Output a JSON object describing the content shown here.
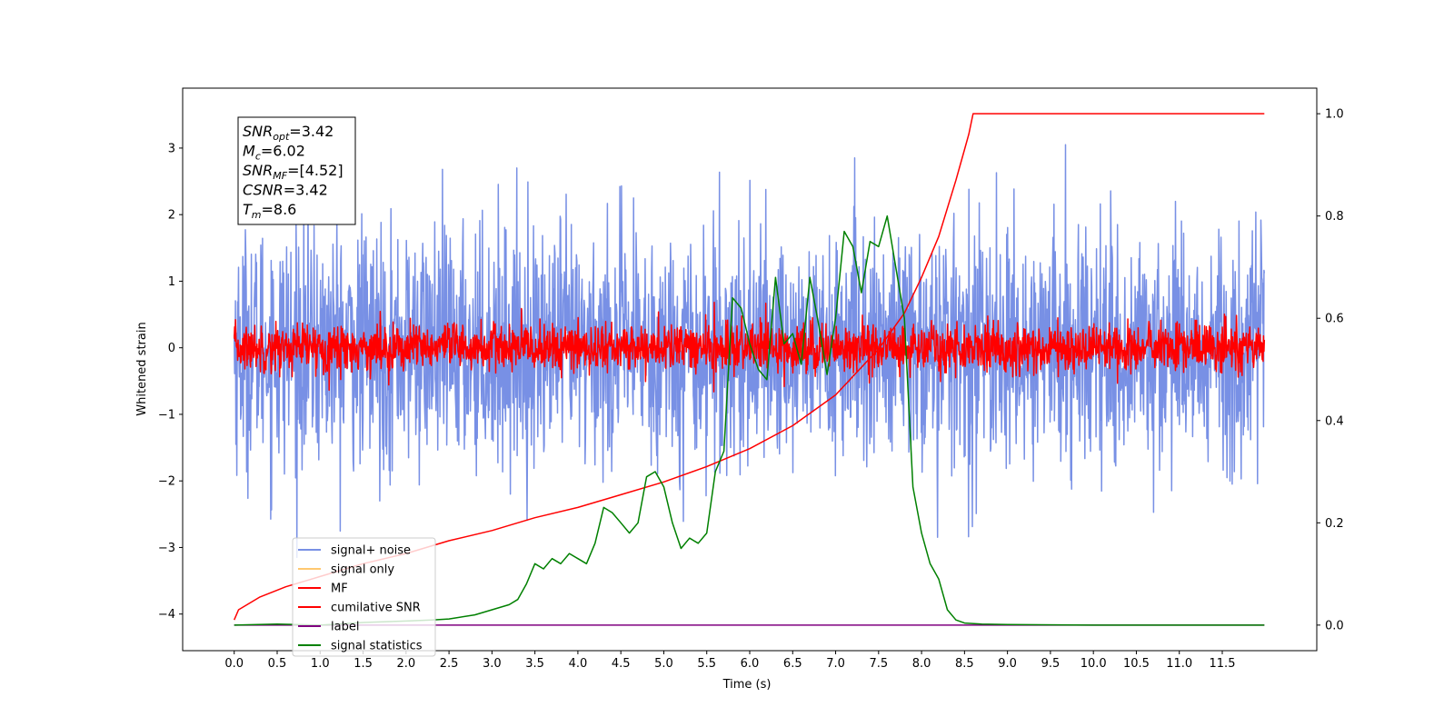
{
  "chart_data": {
    "type": "line",
    "xlabel": "Time (s)",
    "ylabel": "Whitened strain",
    "xlim": [
      -0.6,
      12.6
    ],
    "ylim": [
      -4.55,
      3.9
    ],
    "ylim_right": [
      -0.05,
      1.05
    ],
    "x_ticks": [
      "0.0",
      "0.5",
      "1.0",
      "1.5",
      "2.0",
      "2.5",
      "3.0",
      "3.5",
      "4.0",
      "4.5",
      "5.0",
      "5.5",
      "6.0",
      "6.5",
      "7.0",
      "7.5",
      "8.0",
      "8.5",
      "9.0",
      "9.5",
      "10.0",
      "10.5",
      "11.0",
      "11.5"
    ],
    "x_tick_values": [
      0,
      0.5,
      1,
      1.5,
      2,
      2.5,
      3,
      3.5,
      4,
      4.5,
      5,
      5.5,
      6,
      6.5,
      7,
      7.5,
      8,
      8.5,
      9,
      9.5,
      10,
      10.5,
      11,
      11.5
    ],
    "y_ticks": [
      "−4",
      "−3",
      "−2",
      "−1",
      "0",
      "1",
      "2",
      "3"
    ],
    "y_tick_values": [
      -4,
      -3,
      -2,
      -1,
      0,
      1,
      2,
      3
    ],
    "y_right_ticks": [
      "0.0",
      "0.2",
      "0.4",
      "0.6",
      "0.8",
      "1.0"
    ],
    "y_right_tick_values": [
      0,
      0.2,
      0.4,
      0.6,
      0.8,
      1.0
    ],
    "annotation": [
      {
        "main": "SNR",
        "sub": "opt",
        "rest": "=3.42"
      },
      {
        "main": "M",
        "sub": "c",
        "rest": "=6.02"
      },
      {
        "main": "SNR",
        "sub": "MF",
        "rest": "=[4.52]"
      },
      {
        "main": "CSNR",
        "sub": "",
        "rest": "=3.42"
      },
      {
        "main": "T",
        "sub": "m",
        "rest": "=8.6"
      }
    ],
    "legend": [
      {
        "label": "signal+ noise",
        "color": "#7890e5"
      },
      {
        "label": "signal only",
        "color": "#ffc870"
      },
      {
        "label": "MF",
        "color": "#ff0000"
      },
      {
        "label": "cumilative SNR",
        "color": "#ff0000"
      },
      {
        "label": "label",
        "color": "#800080"
      },
      {
        "label": "signal statistics",
        "color": "#008000"
      }
    ],
    "legend_position": "lower-left",
    "series": [
      {
        "name": "signal+ noise",
        "axis": "left",
        "color": "#7890e5",
        "noise_amplitude": 1.0,
        "x_range": [
          0,
          11.99
        ]
      },
      {
        "name": "MF",
        "axis": "left",
        "color": "#ff0000",
        "noise_amplitude": 0.2,
        "x_range": [
          0,
          11.99
        ]
      },
      {
        "name": "cumilative SNR",
        "axis": "right",
        "color": "#ff0000",
        "x": [
          0,
          0.05,
          0.3,
          0.6,
          1.0,
          1.5,
          2.0,
          2.5,
          3.0,
          3.5,
          4.0,
          4.5,
          5.0,
          5.5,
          6.0,
          6.5,
          7.0,
          7.5,
          7.8,
          8.0,
          8.2,
          8.4,
          8.5,
          8.55,
          8.6,
          9.0,
          10.0,
          11.0,
          11.99
        ],
        "y": [
          0.01,
          0.03,
          0.055,
          0.075,
          0.095,
          0.12,
          0.14,
          0.165,
          0.185,
          0.21,
          0.23,
          0.255,
          0.28,
          0.31,
          0.345,
          0.39,
          0.45,
          0.54,
          0.61,
          0.68,
          0.76,
          0.87,
          0.93,
          0.96,
          1.0,
          1.0,
          1.0,
          1.0,
          1.0
        ]
      },
      {
        "name": "label",
        "axis": "right",
        "color": "#800080",
        "x": [
          0,
          11.99
        ],
        "y": [
          0,
          0
        ]
      },
      {
        "name": "signal statistics",
        "axis": "right",
        "color": "#008000",
        "x": [
          0,
          0.5,
          1.0,
          1.5,
          2.0,
          2.3,
          2.5,
          2.8,
          3.0,
          3.2,
          3.3,
          3.4,
          3.5,
          3.6,
          3.7,
          3.8,
          3.9,
          4.0,
          4.1,
          4.2,
          4.3,
          4.4,
          4.5,
          4.6,
          4.7,
          4.8,
          4.9,
          5.0,
          5.1,
          5.2,
          5.3,
          5.4,
          5.5,
          5.6,
          5.7,
          5.8,
          5.9,
          6.0,
          6.1,
          6.2,
          6.3,
          6.4,
          6.5,
          6.6,
          6.7,
          6.8,
          6.9,
          7.0,
          7.1,
          7.2,
          7.3,
          7.4,
          7.5,
          7.6,
          7.7,
          7.8,
          7.9,
          8.0,
          8.1,
          8.2,
          8.3,
          8.4,
          8.5,
          8.7,
          9.0,
          10.0,
          11.0,
          11.99
        ],
        "y": [
          0,
          0.002,
          0,
          0.005,
          0.008,
          0.01,
          0.012,
          0.02,
          0.03,
          0.04,
          0.05,
          0.08,
          0.12,
          0.11,
          0.13,
          0.12,
          0.14,
          0.13,
          0.12,
          0.16,
          0.23,
          0.22,
          0.2,
          0.18,
          0.2,
          0.29,
          0.3,
          0.27,
          0.2,
          0.15,
          0.17,
          0.16,
          0.18,
          0.3,
          0.34,
          0.64,
          0.62,
          0.55,
          0.5,
          0.48,
          0.68,
          0.55,
          0.57,
          0.51,
          0.68,
          0.59,
          0.49,
          0.6,
          0.77,
          0.74,
          0.65,
          0.75,
          0.74,
          0.8,
          0.7,
          0.6,
          0.27,
          0.18,
          0.12,
          0.09,
          0.03,
          0.01,
          0.004,
          0.002,
          0.001,
          0,
          0,
          0
        ]
      }
    ]
  }
}
